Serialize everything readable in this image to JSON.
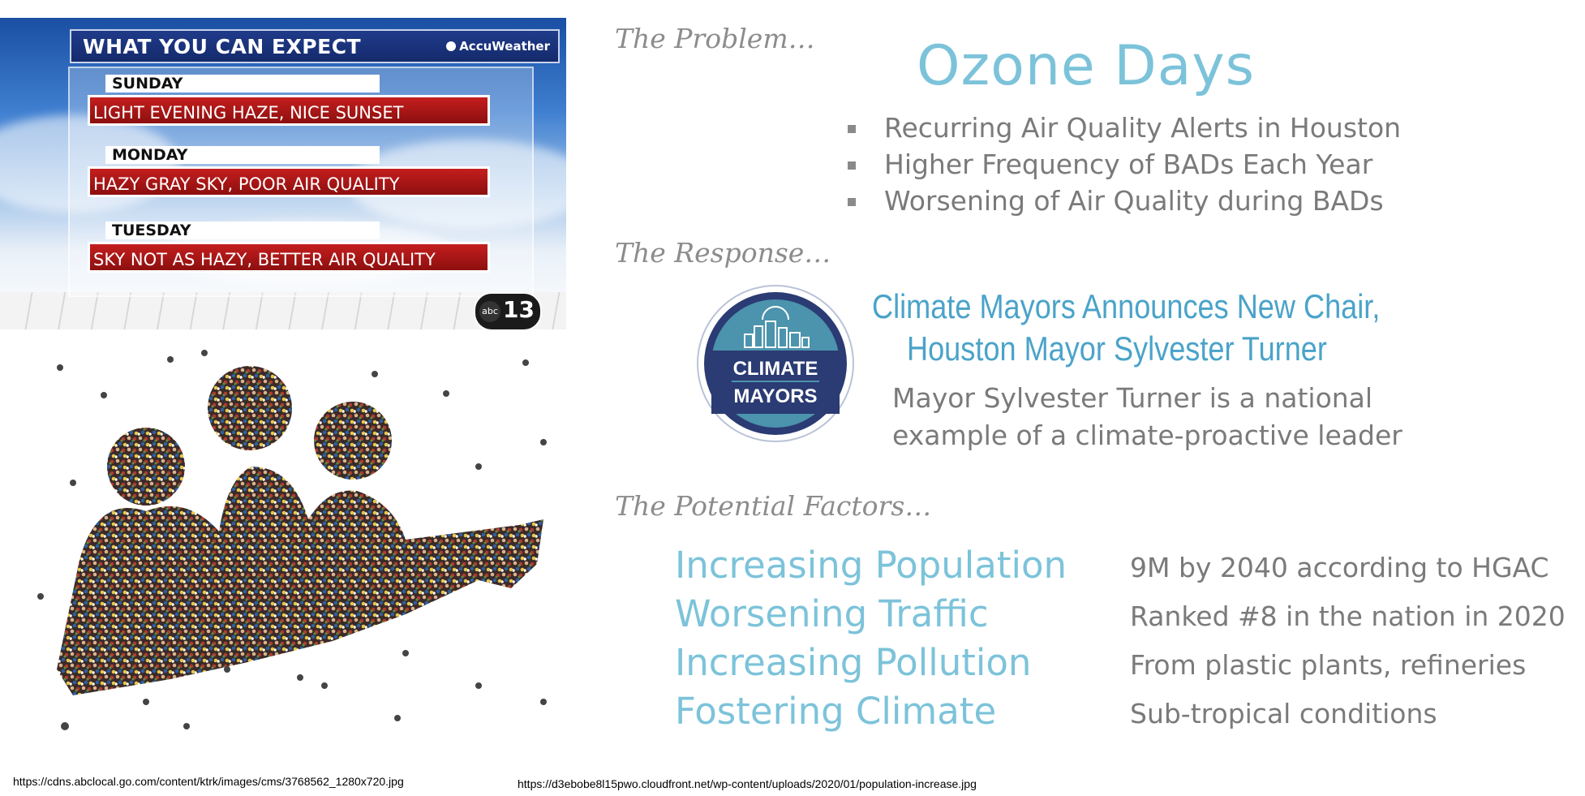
{
  "weather": {
    "header": "WHAT YOU CAN EXPECT",
    "brand": "AccuWeather",
    "station_logo": {
      "abc": "abc",
      "number": "13"
    },
    "days": [
      {
        "day": "SUNDAY",
        "forecast": "LIGHT EVENING HAZE,  NICE SUNSET"
      },
      {
        "day": "MONDAY",
        "forecast": "HAZY GRAY SKY, POOR AIR QUALITY"
      },
      {
        "day": "TUESDAY",
        "forecast": "SKY NOT AS HAZY,  BETTER AIR QUALITY"
      }
    ],
    "colors": {
      "header": "#1a3480",
      "forecast_bar": "#b01818"
    }
  },
  "sources": {
    "weather_url": "https://cdns.abclocal.go.com/content/ktrk/images/cms/3768562_1280x720.jpg",
    "crowd_url": "https://d3ebobe8l15pwo.cloudfront.net/wp-content/uploads/2020/01/population-increase.jpg"
  },
  "problem": {
    "label": "The Problem…",
    "title": "Ozone Days",
    "bullets": [
      "Recurring Air Quality Alerts in Houston",
      "Higher Frequency of BADs Each Year",
      "Worsening of  Air Quality during BADs"
    ]
  },
  "response": {
    "label": "The Response…",
    "badge": {
      "line1": "CLIMATE",
      "line2": "MAYORS"
    },
    "heading_line1": "Climate Mayors Announces New Chair,",
    "heading_line2": "Houston Mayor Sylvester Turner",
    "text_line1": "Mayor Sylvester Turner is a national",
    "text_line2": "example of a climate-proactive  leader"
  },
  "factors": {
    "label": "The Potential Factors…",
    "items": [
      {
        "name": "Increasing Population",
        "detail": "9M by 2040 according to HGAC"
      },
      {
        "name": "Worsening Traffic",
        "detail": "Ranked #8 in the nation in 2020"
      },
      {
        "name": "Increasing Pollution",
        "detail": "From plastic plants, refineries"
      },
      {
        "name": "Fostering Climate",
        "detail": "Sub-tropical conditions"
      }
    ]
  },
  "colors": {
    "accent_light_blue": "#7cc3da",
    "heading_blue": "#4aa3c9",
    "body_gray": "#7a7a7a",
    "badge_navy": "#2b3b73",
    "badge_teal": "#4c93ad"
  }
}
